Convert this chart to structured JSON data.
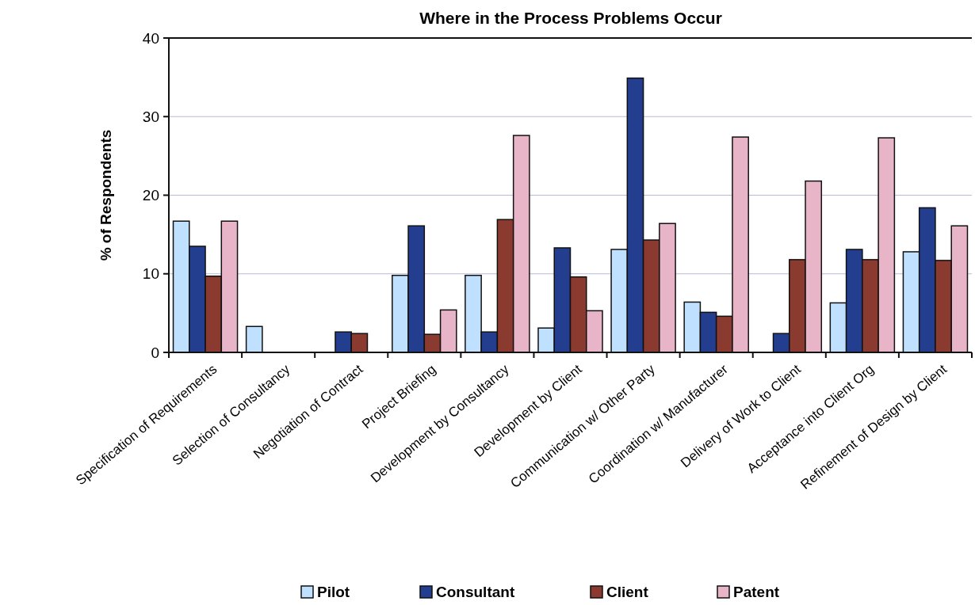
{
  "chart_data": {
    "type": "bar",
    "title": "Where in the Process Problems Occur",
    "ylabel": "% of Respondents",
    "categories": [
      "Specification of Requirements",
      "Selection of Consultancy",
      "Negotiation of Contract",
      "Project Briefing",
      "Development by Consultancy",
      "Development by Client",
      "Communication w/ Other Party",
      "Coordination w/ Manufacturer",
      "Delivery of Work to Client",
      "Acceptance into Client Org",
      "Refinement of Design by Client"
    ],
    "series": [
      {
        "name": "Pilot",
        "color": "#bfe0ff",
        "values": [
          16.7,
          3.3,
          0,
          9.8,
          9.8,
          3.1,
          13.1,
          6.4,
          0,
          6.3,
          12.8
        ]
      },
      {
        "name": "Consultant",
        "color": "#233d8f",
        "values": [
          13.5,
          0,
          2.6,
          16.1,
          2.6,
          13.3,
          34.9,
          5.1,
          2.4,
          13.1,
          18.4
        ]
      },
      {
        "name": "Client",
        "color": "#8b3a2f",
        "values": [
          9.7,
          0,
          2.4,
          2.3,
          16.9,
          9.6,
          14.3,
          4.6,
          11.8,
          11.8,
          11.7
        ]
      },
      {
        "name": "Patent",
        "color": "#e8b4c8",
        "values": [
          16.7,
          0,
          0,
          5.4,
          27.6,
          5.3,
          16.4,
          27.4,
          21.8,
          27.3,
          16.1
        ]
      }
    ],
    "ylim": [
      0,
      40
    ],
    "yticks": [
      0,
      10,
      20,
      30,
      40
    ],
    "grid": "y",
    "legend": "bottom"
  }
}
